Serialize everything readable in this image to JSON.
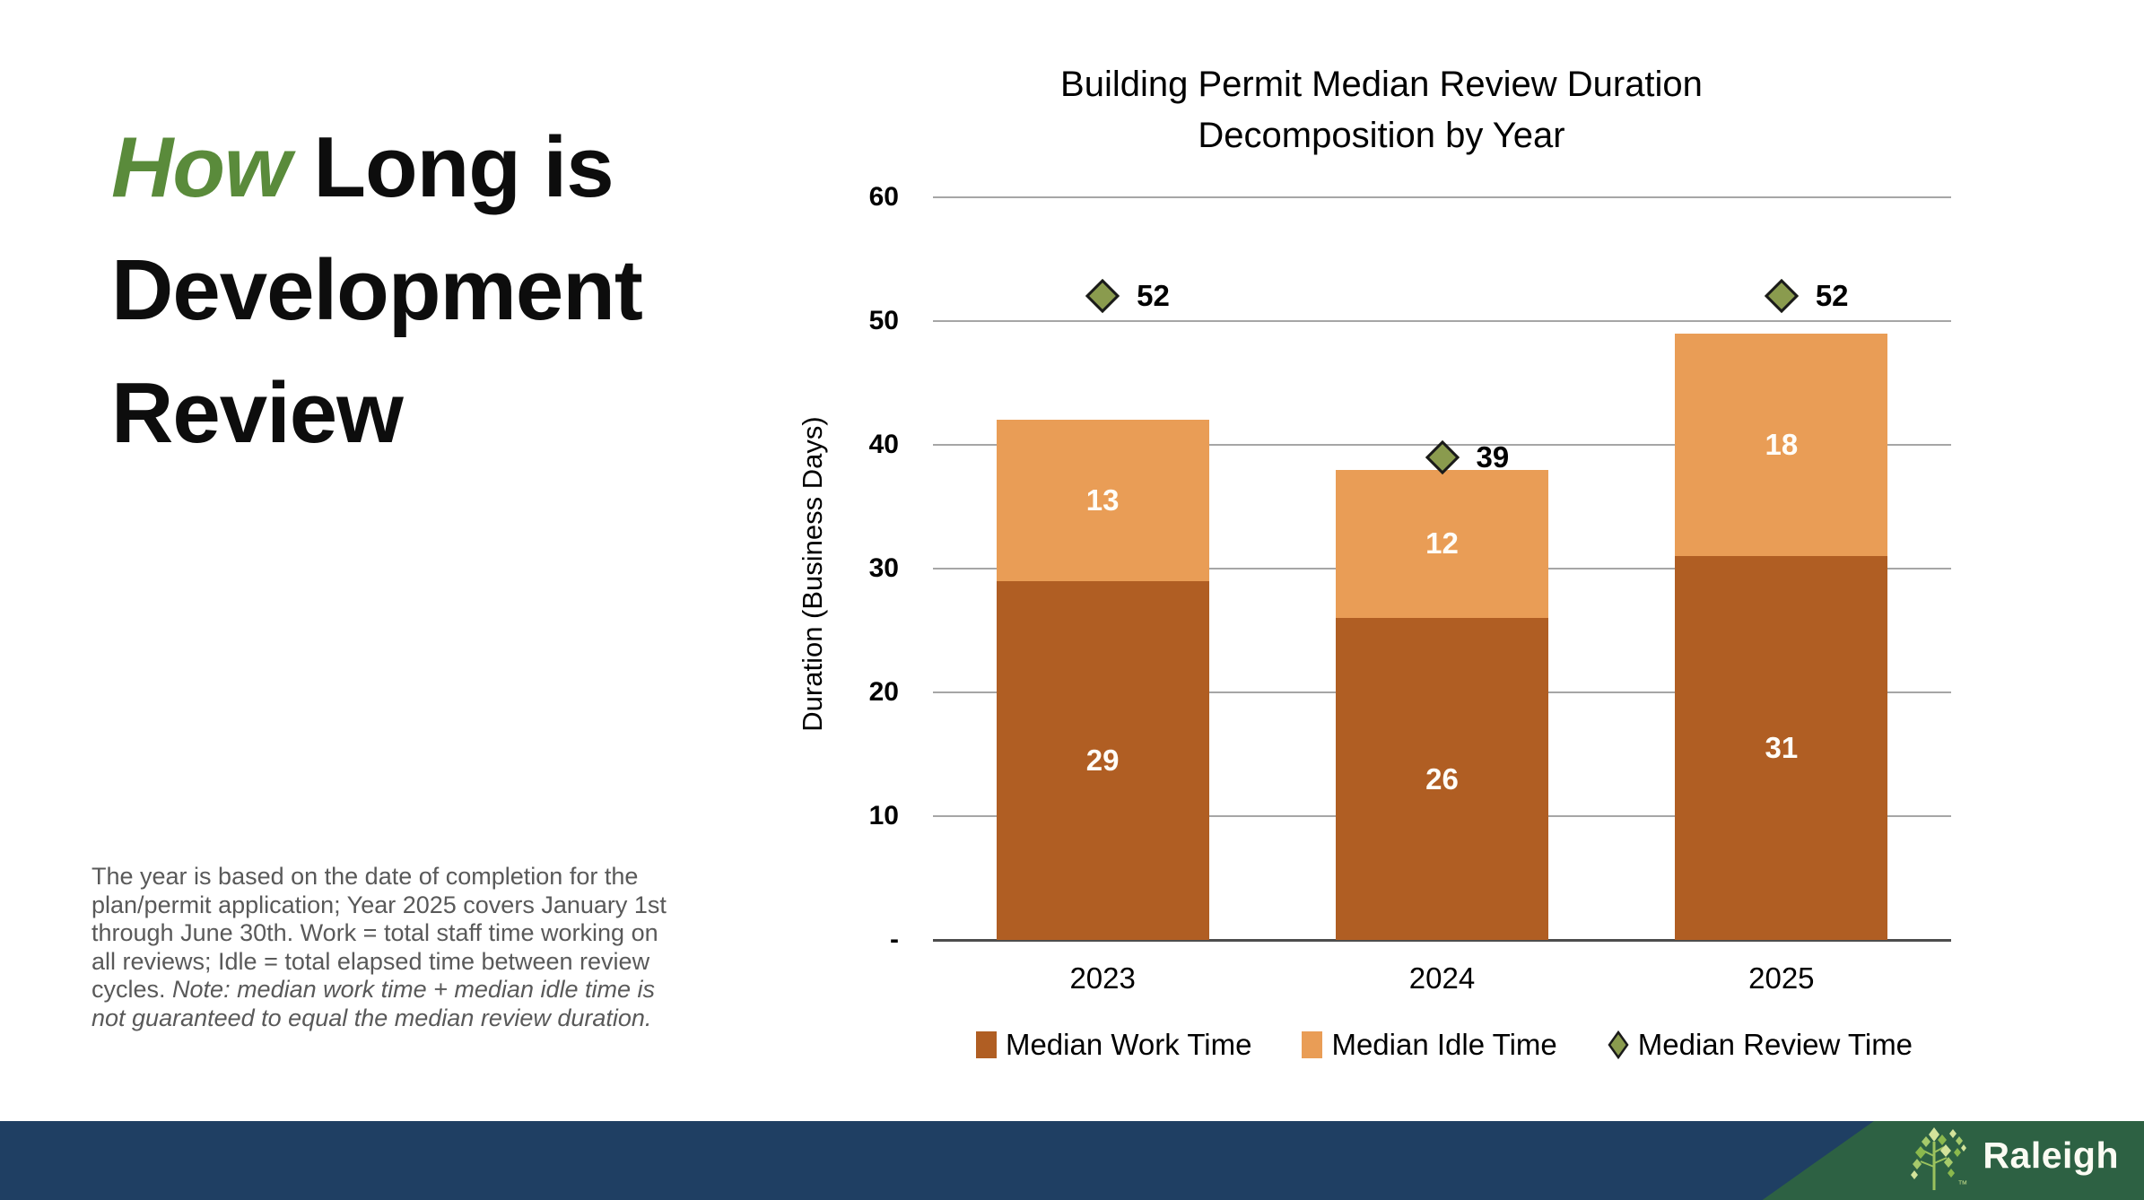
{
  "slide": {
    "heading": {
      "accent": "How",
      "rest": " Long is Development Review"
    },
    "footnote": {
      "text": "The year is based on the date of completion for the plan/permit application; Year 2025 covers January 1st through June 30th. Work = total staff time working on all reviews; Idle = total elapsed time between review cycles. ",
      "note": "Note: median work time + median idle time is not guaranteed to equal the median review duration."
    }
  },
  "chart_data": {
    "type": "bar",
    "stacked": true,
    "title": "Building Permit Median Review Duration Decomposition by Year",
    "title_lines": [
      "Building Permit Median Review Duration",
      "Decomposition by Year"
    ],
    "xlabel": "",
    "ylabel": "Duration (Business Days)",
    "ylim": [
      0,
      60
    ],
    "ytick_labels": [
      "-",
      "10",
      "20",
      "30",
      "40",
      "50",
      "60"
    ],
    "grid": true,
    "legend_position": "bottom",
    "categories": [
      "2023",
      "2024",
      "2025"
    ],
    "series": [
      {
        "name": "Median Work Time",
        "type": "bar",
        "color": "#b05e23",
        "values": [
          29,
          26,
          31
        ]
      },
      {
        "name": "Median Idle Time",
        "type": "bar",
        "color": "#e99d56",
        "values": [
          13,
          12,
          18
        ]
      },
      {
        "name": "Median Review Time",
        "type": "scatter",
        "marker": "diamond",
        "color": "#8a9b4e",
        "values": [
          52,
          39,
          52
        ]
      }
    ]
  },
  "footer": {
    "brand": "Raleigh",
    "trademark": "™",
    "bar_color": "#1f3f63",
    "accent_color": "#2d6143"
  },
  "colors": {
    "heading_accent": "#5a8b3b",
    "footnote_text": "#595959",
    "gridline": "#a6a6a6",
    "axis_line": "#4d4d4d",
    "bar_value_label": "#fffdf8",
    "diamond_border": "#1a1a1a",
    "tree_greens": [
      "#d3e39b",
      "#a6ca6b",
      "#8bb94d"
    ]
  }
}
